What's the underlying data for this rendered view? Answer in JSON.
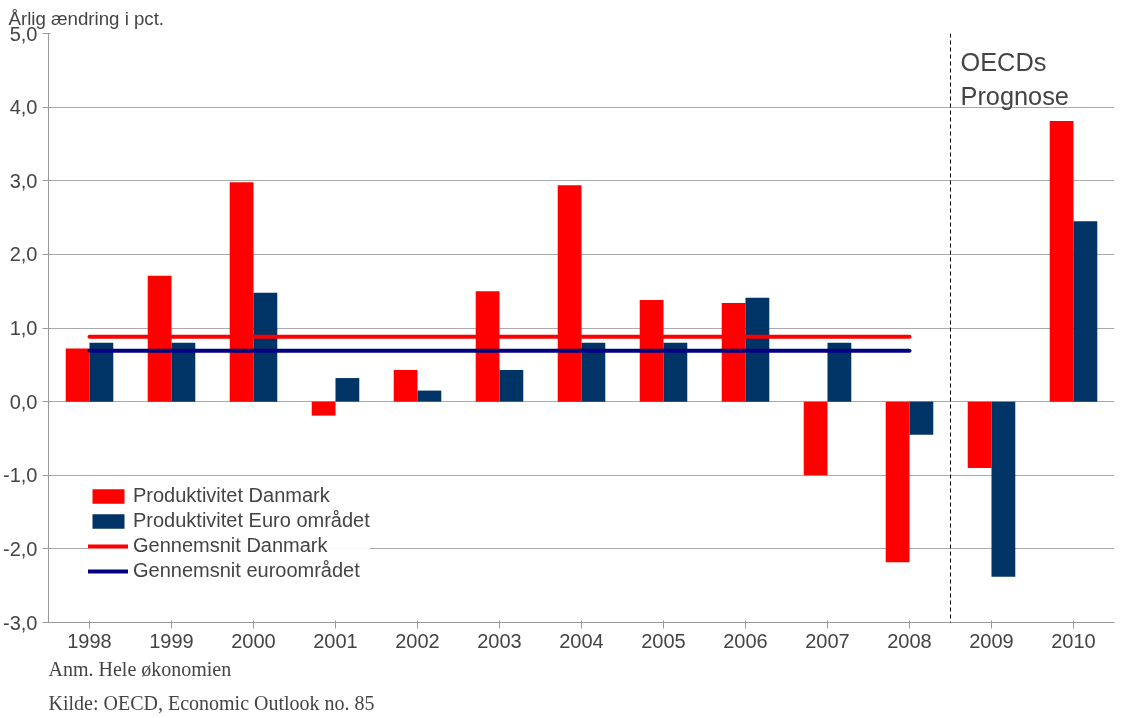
{
  "chart_data": {
    "type": "bar",
    "ylabel": "Årlig ændring i pct.",
    "x": [
      1998,
      1999,
      2000,
      2001,
      2002,
      2003,
      2004,
      2005,
      2006,
      2007,
      2008,
      2009,
      2010
    ],
    "series": [
      {
        "name": "Produktivitet Danmark",
        "color": "#ff0000",
        "values": [
          0.72,
          1.71,
          2.98,
          -0.19,
          0.43,
          1.5,
          2.94,
          1.38,
          1.34,
          -1.0,
          -2.18,
          -0.9,
          3.81
        ]
      },
      {
        "name": "Produktivitet Euro området",
        "color": "#003366",
        "values": [
          0.8,
          0.8,
          1.48,
          0.32,
          0.15,
          0.43,
          0.8,
          0.8,
          1.41,
          0.8,
          -0.45,
          -2.38,
          2.45
        ]
      },
      {
        "name": "Gennemsnit Danmark",
        "type": "line",
        "color": "#ff0000",
        "values": [
          0.88,
          0.88,
          0.88,
          0.88,
          0.88,
          0.88,
          0.88,
          0.88,
          0.88,
          0.88,
          0.88,
          null,
          null
        ]
      },
      {
        "name": "Gennemsnit euroområdet",
        "type": "line",
        "color": "#000080",
        "values": [
          0.69,
          0.69,
          0.69,
          0.69,
          0.69,
          0.69,
          0.69,
          0.69,
          0.69,
          0.69,
          0.69,
          null,
          null
        ]
      }
    ],
    "xlim": [
      1997.5,
      2010.5
    ],
    "xticks": [
      1998,
      1999,
      2000,
      2001,
      2002,
      2003,
      2004,
      2005,
      2006,
      2007,
      2008,
      2009,
      2010
    ],
    "ylim": [
      -3,
      5
    ],
    "yticks": [
      {
        "value": -3,
        "label": "-3,0"
      },
      {
        "value": -2,
        "label": "-2,0"
      },
      {
        "value": -1,
        "label": "-1,0"
      },
      {
        "value": 0,
        "label": "0,0"
      },
      {
        "value": 1,
        "label": "1,0"
      },
      {
        "value": 2,
        "label": "2,0"
      },
      {
        "value": 3,
        "label": "3,0"
      },
      {
        "value": 4,
        "label": "4,0"
      },
      {
        "value": 5,
        "label": "5,0"
      }
    ],
    "ref_lines": [
      {
        "axis": "x",
        "value": 2008.5,
        "label": "OECDs Prognose",
        "color": "#000000",
        "line_style": "dashed"
      }
    ],
    "grid": "y",
    "legend": "bottom left",
    "annotations": [
      "Anm. Hele økonomien",
      "Kilde: OECD, Economic Outlook no. 85"
    ]
  }
}
